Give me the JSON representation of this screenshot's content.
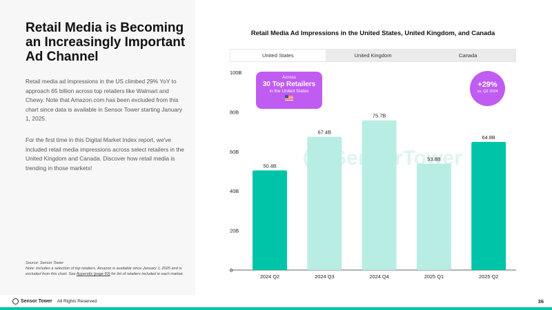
{
  "headline": "Retail Media is Becoming an Increasingly Important Ad Channel",
  "paragraph_1": "Retail media ad impressions in the US climbed 29% YoY to approach 65 billion across top retailers like Walmart and Chewy. Note that Amazon.com has been excluded from this chart since data is available in Sensor Tower starting January 1, 2025.",
  "paragraph_2": "For the first time in this Digital Market Index report, we've included retail media impressions across select retailers in the United Kingdom and Canada. Discover how retail media is trending in those markets!",
  "source": {
    "line": "Source: Sensor Tower",
    "note_before": "Note: Includes a selection of top retailers. Amazon is available since January 1, 2025 and is excluded from this chart. See ",
    "note_link": "Appendix (page 83)",
    "note_after": " for list of retailers included in each market."
  },
  "footer": {
    "logo_text": "Sensor Tower",
    "rights": "All Rights Reserved",
    "page_number": "36"
  },
  "tabs": [
    {
      "label": "United States",
      "active": true
    },
    {
      "label": "United Kingdom",
      "active": false
    },
    {
      "label": "Canada",
      "active": false
    }
  ],
  "callout": {
    "line1": "Across",
    "line2": "30 Top Retailers",
    "line3": "in the United States"
  },
  "badge": {
    "value": "+29%",
    "caption": "vs. Q2 2024"
  },
  "watermark": "SensorTower",
  "colors": {
    "bar_highlight": "#00c4a7",
    "bar_light": "#b8ede4",
    "callout": "#c05cf2",
    "accent": "#00c4a7"
  },
  "chart_data": {
    "type": "bar",
    "title": "Retail Media Ad Impressions in the United States, United Kingdom, and Canada",
    "categories": [
      "2024 Q2",
      "2024 Q3",
      "2024 Q4",
      "2025 Q1",
      "2025 Q2"
    ],
    "values": [
      50.4,
      67.4,
      75.7,
      53.8,
      64.8
    ],
    "value_labels": [
      "50.4B",
      "67.4B",
      "75.7B",
      "53.8B",
      "64.8B"
    ],
    "highlighted": [
      true,
      false,
      false,
      false,
      true
    ],
    "yticks": [
      0,
      20,
      40,
      60,
      80,
      100
    ],
    "ytick_labels": [
      "0",
      "20B",
      "40B",
      "60B",
      "80B",
      "100B"
    ],
    "ylim": [
      0,
      100
    ],
    "xlabel": "",
    "ylabel": "",
    "grid": false,
    "legend": false
  }
}
